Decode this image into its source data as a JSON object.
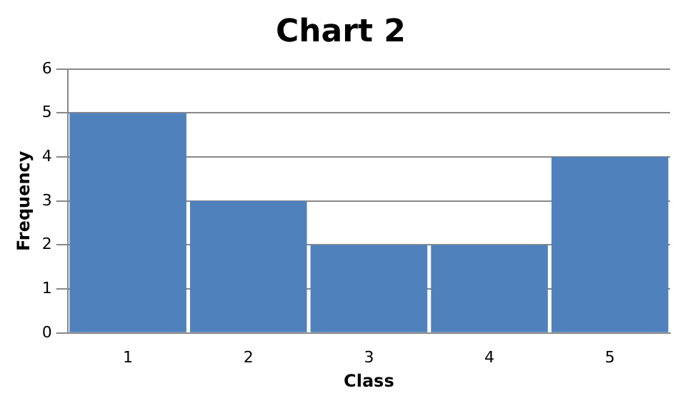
{
  "chart_data": {
    "type": "bar",
    "title": "Chart 2",
    "xlabel": "Class",
    "ylabel": "Frequency",
    "categories": [
      "1",
      "2",
      "3",
      "4",
      "5"
    ],
    "values": [
      5,
      3,
      2,
      2,
      4
    ],
    "color": "#4f81bd",
    "ylim": [
      0,
      6
    ],
    "yticks": [
      0,
      1,
      2,
      3,
      4,
      5,
      6
    ],
    "grid": "y",
    "legend": false
  }
}
